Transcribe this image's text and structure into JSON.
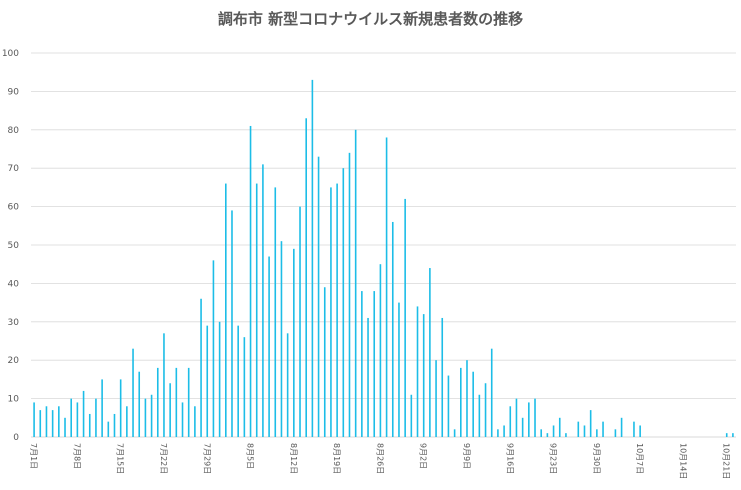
{
  "chart_data": {
    "type": "bar",
    "title": "調布市 新型コロナウイルス新規患者数の推移",
    "xlabel": "",
    "ylabel": "",
    "ylim": [
      0,
      100
    ],
    "yticks": [
      0,
      10,
      20,
      30,
      40,
      50,
      60,
      70,
      80,
      90,
      100
    ],
    "grid": true,
    "legend": "none",
    "bar_color": "#1CBDE7",
    "grid_color": "#D9D9D9",
    "categories": [
      "7月1日",
      "7月2日",
      "7月3日",
      "7月4日",
      "7月5日",
      "7月6日",
      "7月7日",
      "7月8日",
      "7月9日",
      "7月10日",
      "7月11日",
      "7月12日",
      "7月13日",
      "7月14日",
      "7月15日",
      "7月16日",
      "7月17日",
      "7月18日",
      "7月19日",
      "7月20日",
      "7月21日",
      "7月22日",
      "7月23日",
      "7月24日",
      "7月25日",
      "7月26日",
      "7月27日",
      "7月28日",
      "7月29日",
      "7月30日",
      "7月31日",
      "8月1日",
      "8月2日",
      "8月3日",
      "8月4日",
      "8月5日",
      "8月6日",
      "8月7日",
      "8月8日",
      "8月9日",
      "8月10日",
      "8月11日",
      "8月12日",
      "8月13日",
      "8月14日",
      "8月15日",
      "8月16日",
      "8月17日",
      "8月18日",
      "8月19日",
      "8月20日",
      "8月21日",
      "8月22日",
      "8月23日",
      "8月24日",
      "8月25日",
      "8月26日",
      "8月27日",
      "8月28日",
      "8月29日",
      "8月30日",
      "8月31日",
      "9月1日",
      "9月2日",
      "9月3日",
      "9月4日",
      "9月5日",
      "9月6日",
      "9月7日",
      "9月8日",
      "9月9日",
      "9月10日",
      "9月11日",
      "9月12日",
      "9月13日",
      "9月14日",
      "9月15日",
      "9月16日",
      "9月17日",
      "9月18日",
      "9月19日",
      "9月20日",
      "9月21日",
      "9月22日",
      "9月23日",
      "9月24日",
      "9月25日",
      "9月26日",
      "9月27日",
      "9月28日",
      "9月29日",
      "9月30日",
      "10月1日",
      "10月2日",
      "10月3日",
      "10月4日",
      "10月5日",
      "10月6日",
      "10月7日",
      "10月8日",
      "10月9日",
      "10月10日",
      "10月11日",
      "10月12日",
      "10月13日",
      "10月14日",
      "10月15日",
      "10月16日",
      "10月17日",
      "10月18日",
      "10月19日",
      "10月20日",
      "10月21日",
      "10月22日"
    ],
    "xtick_labels": [
      "7月1日",
      "7月8日",
      "7月15日",
      "7月22日",
      "7月29日",
      "8月5日",
      "8月12日",
      "8月19日",
      "8月26日",
      "9月2日",
      "9月9日",
      "9月16日",
      "9月23日",
      "9月30日",
      "10月7日",
      "10月14日",
      "10月21日"
    ],
    "values": [
      9,
      7,
      8,
      7,
      8,
      5,
      10,
      9,
      12,
      6,
      10,
      15,
      4,
      6,
      15,
      8,
      23,
      17,
      10,
      11,
      18,
      27,
      14,
      18,
      9,
      18,
      8,
      36,
      29,
      46,
      30,
      66,
      59,
      29,
      26,
      81,
      66,
      71,
      47,
      65,
      51,
      27,
      49,
      60,
      83,
      93,
      73,
      39,
      65,
      66,
      70,
      74,
      80,
      38,
      31,
      38,
      45,
      78,
      56,
      35,
      62,
      11,
      34,
      32,
      44,
      20,
      31,
      16,
      2,
      18,
      20,
      17,
      11,
      14,
      23,
      2,
      3,
      8,
      10,
      5,
      9,
      10,
      2,
      1,
      3,
      5,
      1,
      0,
      4,
      3,
      7,
      2,
      4,
      0,
      2,
      5,
      0,
      4,
      3,
      0,
      0,
      0,
      0,
      0,
      0,
      0,
      0,
      0,
      0,
      0,
      0,
      0,
      1,
      1
    ]
  }
}
